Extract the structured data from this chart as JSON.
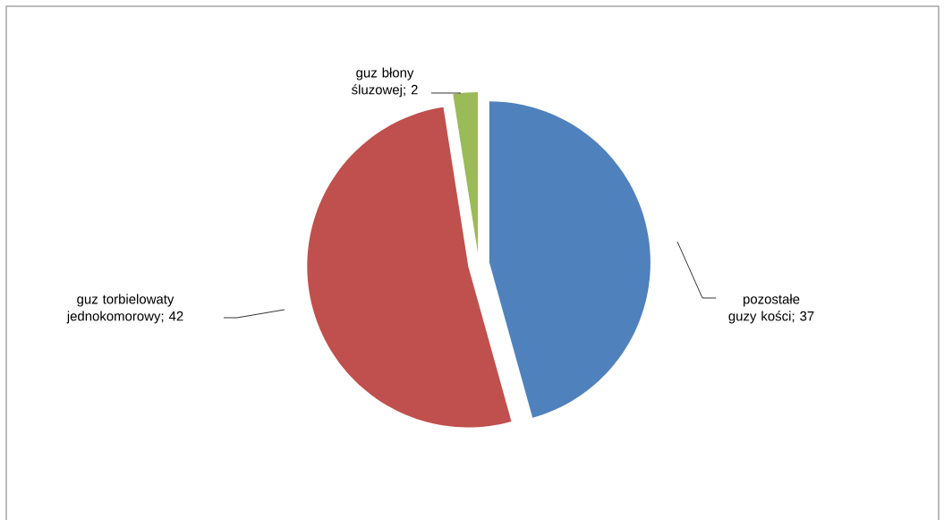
{
  "chart_data": {
    "type": "pie",
    "categories": [
      "pozostałe guzy kości",
      "guz torbielowaty jednokomorowy",
      "guz błony śluzowej"
    ],
    "values": [
      37,
      42,
      2
    ],
    "colors": [
      "#4f81bd",
      "#c0504d",
      "#9bbb59"
    ],
    "value_labels": [
      "; 37",
      "; 42",
      "; 2"
    ]
  }
}
